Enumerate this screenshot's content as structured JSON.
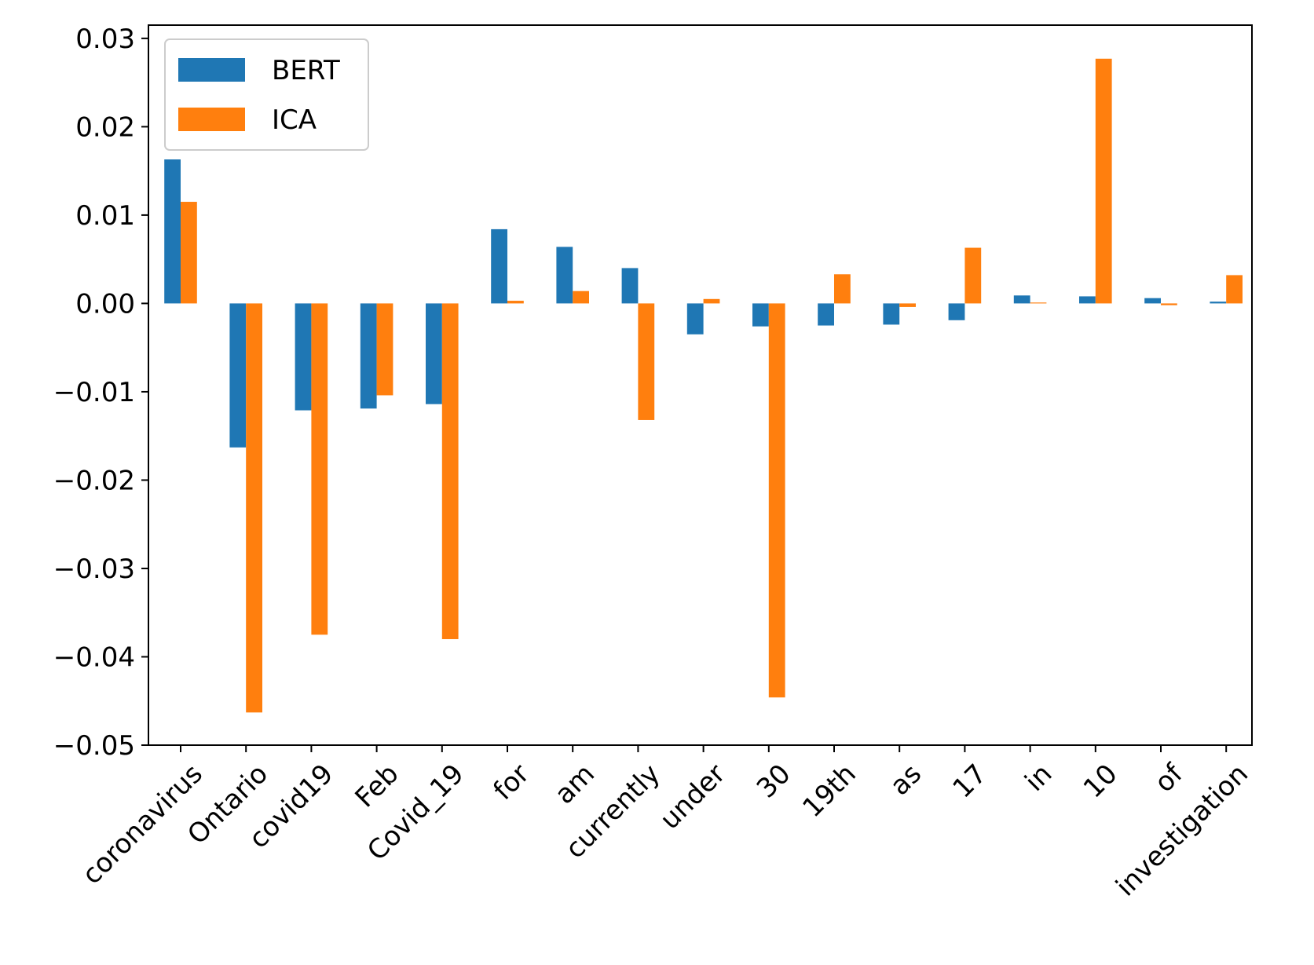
{
  "chart_data": {
    "type": "bar",
    "categories": [
      "coronavirus",
      "Ontario",
      "covid19",
      "Feb",
      "Covid_19",
      "for",
      "am",
      "currently",
      "under",
      "30",
      "19th",
      "as",
      "17",
      "in",
      "10",
      "of",
      "investigation"
    ],
    "series": [
      {
        "name": "BERT",
        "color": "#1f77b4",
        "values": [
          0.0163,
          -0.0163,
          -0.0121,
          -0.0119,
          -0.0114,
          0.0084,
          0.0064,
          0.004,
          -0.0035,
          -0.0026,
          -0.0025,
          -0.0024,
          -0.0019,
          0.0009,
          0.0008,
          0.0006,
          0.0002
        ]
      },
      {
        "name": "ICA",
        "color": "#ff7f0e",
        "values": [
          0.0115,
          -0.0463,
          -0.0375,
          -0.0104,
          -0.038,
          0.0003,
          0.0014,
          -0.0132,
          0.0005,
          -0.0446,
          0.0033,
          -0.0004,
          0.0063,
          0.0001,
          0.0277,
          -0.0002,
          0.0032
        ]
      }
    ],
    "ylim": [
      -0.05,
      0.0315
    ],
    "yticks": [
      -0.05,
      -0.04,
      -0.03,
      -0.02,
      -0.01,
      0.0,
      0.01,
      0.02,
      0.03
    ],
    "ytick_labels": [
      "−0.05",
      "−0.04",
      "−0.03",
      "−0.02",
      "−0.01",
      "0.00",
      "0.01",
      "0.02",
      "0.03"
    ],
    "legend": "top-left",
    "grid": false,
    "xtick_rotation": 45
  }
}
